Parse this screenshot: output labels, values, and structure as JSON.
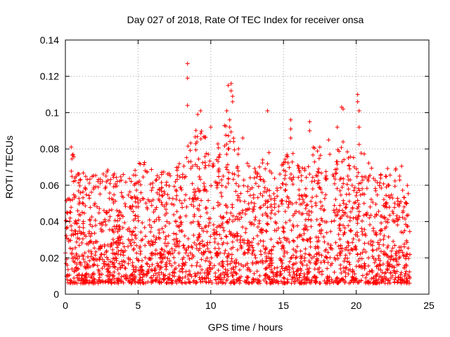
{
  "chart_data": {
    "type": "scatter",
    "title": "Day 027 of 2018, Rate Of TEC Index for receiver onsa",
    "xlabel": "GPS time / hours",
    "ylabel": "ROTI / TECUs",
    "xlim": [
      0,
      25
    ],
    "ylim": [
      0,
      0.14
    ],
    "xticks": [
      0,
      5,
      10,
      15,
      20,
      25
    ],
    "yticks": [
      0,
      0.02,
      0.04,
      0.06,
      0.08,
      0.1,
      0.12,
      0.14
    ],
    "xtick_labels": [
      "0",
      "5",
      "10",
      "15",
      "20",
      "25"
    ],
    "ytick_labels": [
      "0",
      "0.02",
      "0.04",
      "0.06",
      "0.08",
      "0.1",
      "0.12",
      "0.14"
    ],
    "grid": true,
    "marker": "+",
    "marker_color": "#ff0000",
    "x_data_range": [
      0,
      23.7
    ],
    "y_baseline": 0.006,
    "envelope": {
      "x": [
        0,
        0.3,
        0.5,
        1.0,
        1.5,
        2.0,
        2.5,
        3.0,
        3.5,
        4.0,
        4.5,
        5.0,
        5.5,
        6.0,
        6.5,
        7.0,
        7.5,
        8.0,
        8.5,
        9.0,
        9.5,
        10.0,
        10.5,
        11.0,
        11.5,
        12.0,
        12.5,
        13.0,
        13.5,
        14.0,
        14.5,
        15.0,
        15.5,
        16.0,
        16.5,
        17.0,
        17.5,
        18.0,
        18.5,
        19.0,
        19.5,
        20.0,
        20.5,
        21.0,
        21.5,
        22.0,
        22.5,
        23.0,
        23.7
      ],
      "ymax": [
        0.062,
        0.07,
        0.078,
        0.066,
        0.068,
        0.066,
        0.068,
        0.07,
        0.066,
        0.066,
        0.066,
        0.072,
        0.074,
        0.068,
        0.07,
        0.068,
        0.072,
        0.076,
        0.085,
        0.095,
        0.09,
        0.08,
        0.085,
        0.095,
        0.088,
        0.08,
        0.075,
        0.072,
        0.075,
        0.072,
        0.07,
        0.074,
        0.08,
        0.072,
        0.07,
        0.082,
        0.078,
        0.076,
        0.082,
        0.085,
        0.08,
        0.085,
        0.08,
        0.074,
        0.07,
        0.07,
        0.068,
        0.072,
        0.064
      ]
    },
    "outliers": [
      {
        "x": 8.4,
        "y": 0.127
      },
      {
        "x": 8.4,
        "y": 0.119
      },
      {
        "x": 8.4,
        "y": 0.104
      },
      {
        "x": 9.3,
        "y": 0.101
      },
      {
        "x": 9.1,
        "y": 0.099
      },
      {
        "x": 10.0,
        "y": 0.092
      },
      {
        "x": 11.2,
        "y": 0.115
      },
      {
        "x": 11.4,
        "y": 0.116
      },
      {
        "x": 11.4,
        "y": 0.112
      },
      {
        "x": 11.5,
        "y": 0.109
      },
      {
        "x": 11.5,
        "y": 0.106
      },
      {
        "x": 11.1,
        "y": 0.101
      },
      {
        "x": 11.3,
        "y": 0.096
      },
      {
        "x": 11.3,
        "y": 0.092
      },
      {
        "x": 13.9,
        "y": 0.101
      },
      {
        "x": 15.5,
        "y": 0.096
      },
      {
        "x": 15.5,
        "y": 0.091
      },
      {
        "x": 15.5,
        "y": 0.086
      },
      {
        "x": 16.8,
        "y": 0.095
      },
      {
        "x": 16.8,
        "y": 0.09
      },
      {
        "x": 18.7,
        "y": 0.092
      },
      {
        "x": 19.0,
        "y": 0.103
      },
      {
        "x": 19.1,
        "y": 0.102
      },
      {
        "x": 20.1,
        "y": 0.11
      },
      {
        "x": 20.1,
        "y": 0.106
      },
      {
        "x": 20.2,
        "y": 0.101
      },
      {
        "x": 20.2,
        "y": 0.092
      },
      {
        "x": 0.4,
        "y": 0.081
      },
      {
        "x": 17.5,
        "y": 0.081
      },
      {
        "x": 18.1,
        "y": 0.085
      },
      {
        "x": 14.0,
        "y": 0.078
      },
      {
        "x": 12.2,
        "y": 0.086
      }
    ]
  }
}
